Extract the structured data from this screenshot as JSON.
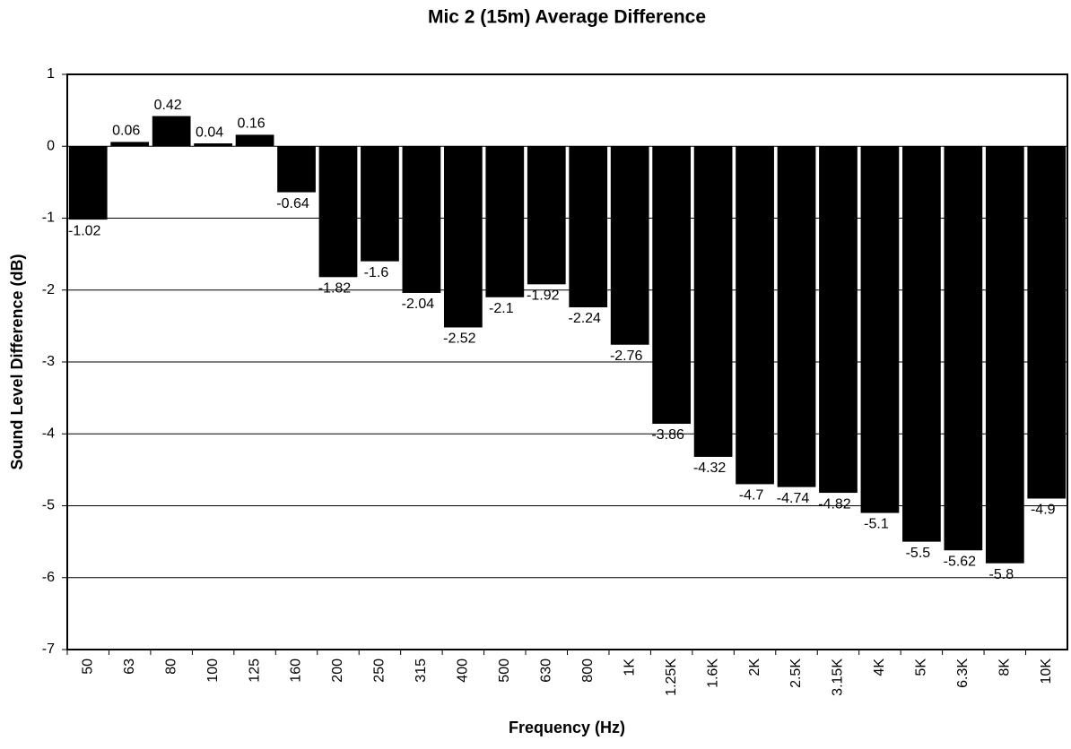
{
  "chart_data": {
    "type": "bar",
    "title": "Mic 2 (15m) Average Difference",
    "x_label": "Frequency (Hz)",
    "y_label": "Sound Level Difference (dB)",
    "categories": [
      "50",
      "63",
      "80",
      "100",
      "125",
      "160",
      "200",
      "250",
      "315",
      "400",
      "500",
      "630",
      "800",
      "1K",
      "1.25K",
      "1.6K",
      "2K",
      "2.5K",
      "3.15K",
      "4K",
      "5K",
      "6.3K",
      "8K",
      "10K"
    ],
    "values": [
      -1.02,
      0.06,
      0.42,
      0.04,
      0.16,
      -0.64,
      -1.82,
      -1.6,
      -2.04,
      -2.52,
      -2.1,
      -1.92,
      -2.24,
      -2.76,
      -3.86,
      -4.32,
      -4.7,
      -4.74,
      -4.82,
      -5.1,
      -5.5,
      -5.62,
      -5.8,
      -4.9
    ],
    "color": "#000000",
    "ylim": [
      -7,
      1
    ],
    "yticks": [
      1,
      0,
      -1,
      -2,
      -3,
      -4,
      -5,
      -6,
      -7
    ],
    "grid": true
  }
}
